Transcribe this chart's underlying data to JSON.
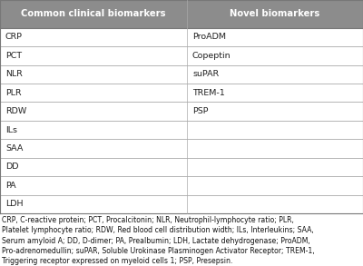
{
  "col1_header": "Common clinical biomarkers",
  "col2_header": "Novel biomarkers",
  "col1_rows": [
    "CRP",
    "PCT",
    "NLR",
    "PLR",
    "RDW",
    "ILs",
    "SAA",
    "DD",
    "PA",
    "LDH"
  ],
  "col2_rows": [
    "ProADM",
    "Copeptin",
    "suPAR",
    "TREM-1",
    "PSP",
    "",
    "",
    "",
    "",
    ""
  ],
  "header_bg": "#8c8c8c",
  "header_text_color": "#ffffff",
  "row_bg": "#ffffff",
  "border_color": "#aaaaaa",
  "outer_border_color": "#777777",
  "col_split": 0.515,
  "footnote_lines": [
    "CRP, C-reactive protein; PCT, Procalcitonin; NLR, Neutrophil-lymphocyte ratio; PLR,",
    "Platelet lymphocyte ratio; RDW, Red blood cell distribution width; ILs, Interleukins; SAA,",
    "Serum amyloid A; DD, D-dimer; PA, Prealbumin; LDH, Lactate dehydrogenase; ProADM,",
    "Pro-adrenomedullin; suPAR, Soluble Urokinase Plasminogen Activator Receptor; TREM-1,",
    "Triggering receptor expressed on myeloid cells 1; PSP, Presepsin."
  ],
  "fig_width": 4.0,
  "fig_height": 2.93,
  "dpi": 100
}
